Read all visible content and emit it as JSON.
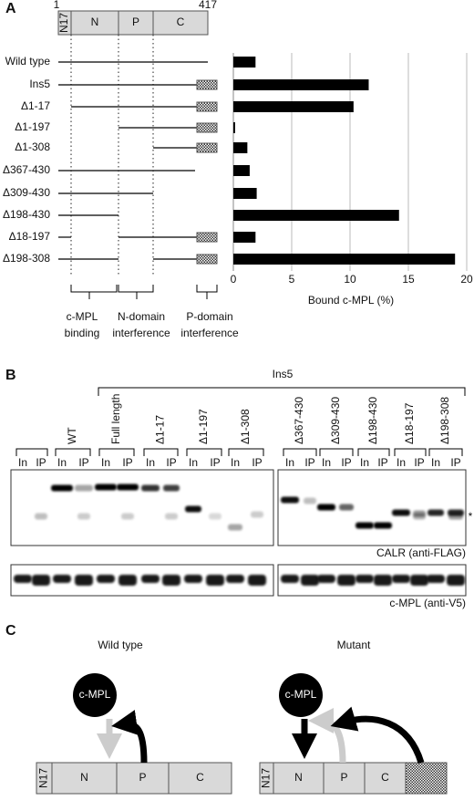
{
  "chart_data": {
    "type": "bar",
    "orientation": "horizontal",
    "categories": [
      "Wild type",
      "Ins5",
      "Δ1-17",
      "Δ1-197",
      "Δ1-308",
      "Δ367-430",
      "Δ309-430",
      "Δ198-430",
      "Δ18-197",
      "Δ198-308"
    ],
    "values": [
      1.9,
      11.6,
      10.3,
      0.15,
      1.2,
      1.4,
      2.0,
      14.2,
      1.9,
      19.0
    ],
    "color": "#000000",
    "xlim": [
      0,
      20
    ],
    "xticks": [
      0,
      5,
      10,
      15,
      20
    ],
    "x_label": "Bound c-MPL (%)",
    "grid": true
  },
  "figure": {
    "panel_a": {
      "label": "A",
      "domain_start": 1,
      "domain_end": 417,
      "domains": [
        "N17",
        "N",
        "P",
        "C"
      ],
      "regions": [
        [
          "c-MPL",
          "binding"
        ],
        [
          "N-domain",
          "interference"
        ],
        [
          "P-domain",
          "interference"
        ]
      ]
    },
    "panel_b": {
      "label": "B",
      "group": "Ins5",
      "lanes": [
        "WT",
        "Full length",
        "Δ1-17",
        "Δ1-197",
        "Δ1-308",
        "Δ367-430",
        "Δ309-430",
        "Δ198-430",
        "Δ18-197",
        "Δ198-308"
      ],
      "lane_sublabels": [
        "In",
        "IP"
      ],
      "blot_top": "CALR (anti-FLAG)",
      "blot_bottom": "c-MPL (anti-V5)",
      "asterisk": "*"
    },
    "panel_c": {
      "label": "C",
      "left_title": "Wild type",
      "right_title": "Mutant",
      "receptor": "c-MPL"
    }
  }
}
